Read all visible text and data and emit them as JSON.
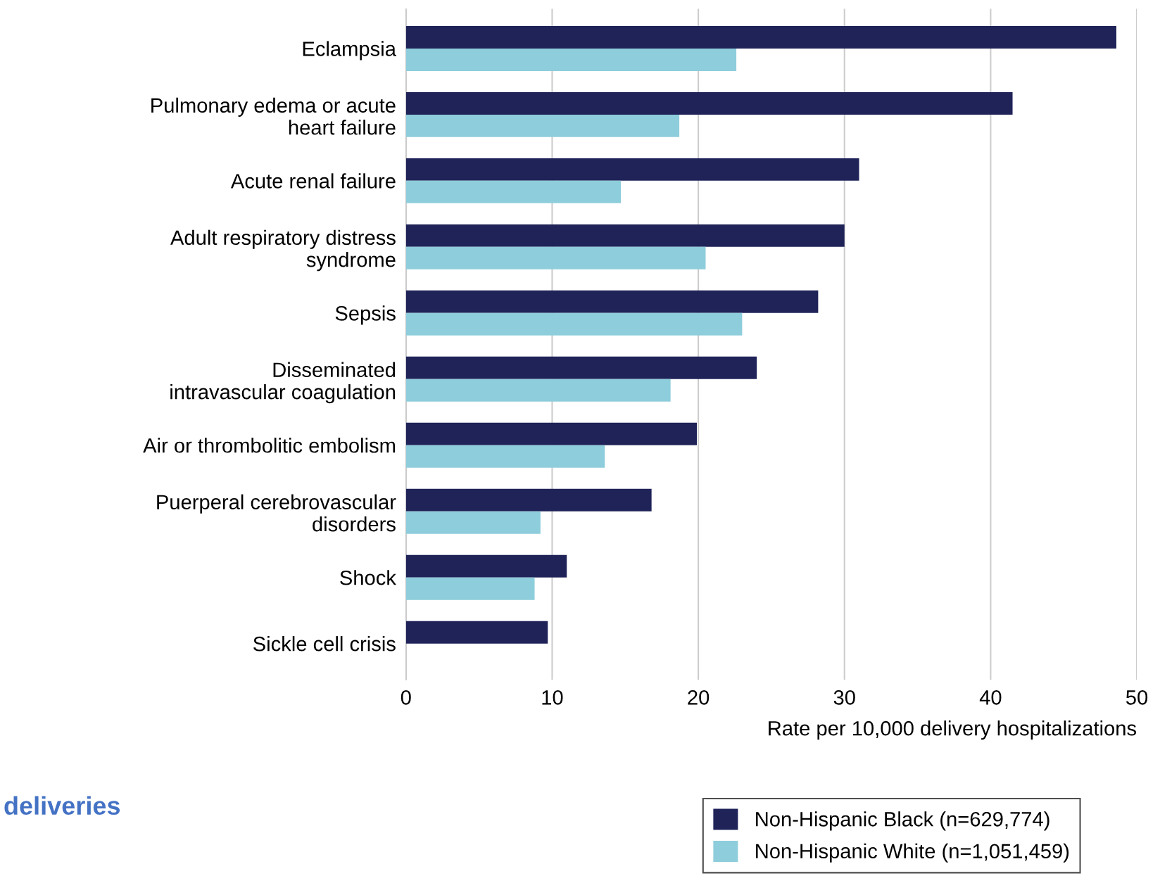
{
  "chart_data": {
    "type": "bar",
    "orientation": "horizontal",
    "categories": [
      "Eclampsia",
      "Pulmonary edema or acute\nheart failure",
      "Acute renal failure",
      "Adult respiratory distress\nsyndrome",
      "Sepsis",
      "Disseminated\nintravascular coagulation",
      "Air or thrombolitic embolism",
      "Puerperal cerebrovascular\ndisorders",
      "Shock",
      "Sickle cell crisis"
    ],
    "series": [
      {
        "name": "Non-Hispanic Black (n=629,774)",
        "color": "#1f2358",
        "values": [
          48.6,
          41.5,
          31.0,
          30.0,
          28.2,
          24.0,
          19.9,
          16.8,
          11.0,
          9.7
        ]
      },
      {
        "name": "Non-Hispanic White (n=1,051,459)",
        "color": "#8ecddb",
        "values": [
          22.6,
          18.7,
          14.7,
          20.5,
          23.0,
          18.1,
          13.6,
          9.2,
          8.8,
          null
        ]
      }
    ],
    "xlim": [
      0,
      50
    ],
    "xticks": [
      0,
      10,
      20,
      30,
      40,
      50
    ],
    "xlabel": "Rate per 10,000 delivery hospitalizations",
    "grid": "x",
    "legend": "bottom right",
    "annotations": [
      "deliveries"
    ]
  }
}
